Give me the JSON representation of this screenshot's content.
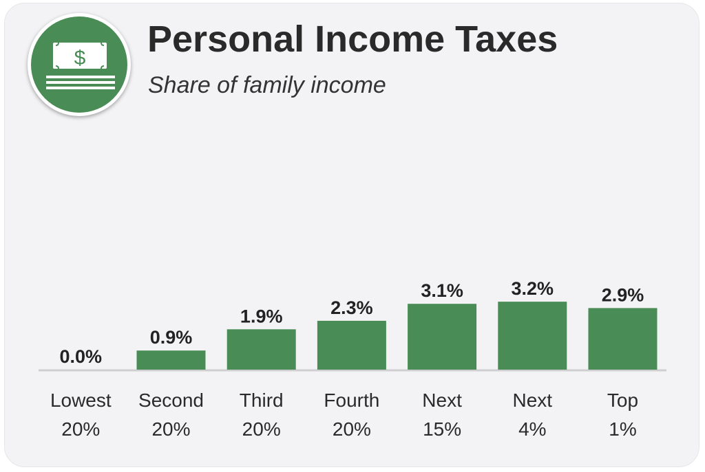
{
  "header": {
    "title": "Personal Income Taxes",
    "subtitle": "Share of family income",
    "icon": "money-stack-icon"
  },
  "colors": {
    "bar": "#4a8c55",
    "badge": "#4a8c55",
    "background": "#f3f3f5"
  },
  "chart_data": {
    "type": "bar",
    "title": "Personal Income Taxes",
    "subtitle": "Share of family income",
    "categories": [
      [
        "Lowest",
        "20%"
      ],
      [
        "Second",
        "20%"
      ],
      [
        "Third",
        "20%"
      ],
      [
        "Fourth",
        "20%"
      ],
      [
        "Next",
        "15%"
      ],
      [
        "Next",
        "4%"
      ],
      [
        "Top",
        "1%"
      ]
    ],
    "values": [
      0.0,
      0.9,
      1.9,
      2.3,
      3.1,
      3.2,
      2.9
    ],
    "value_labels": [
      "0.0%",
      "0.9%",
      "1.9%",
      "2.3%",
      "3.1%",
      "3.2%",
      "2.9%"
    ],
    "ylim": [
      0,
      3.2
    ],
    "grid": false,
    "legend": "none"
  }
}
